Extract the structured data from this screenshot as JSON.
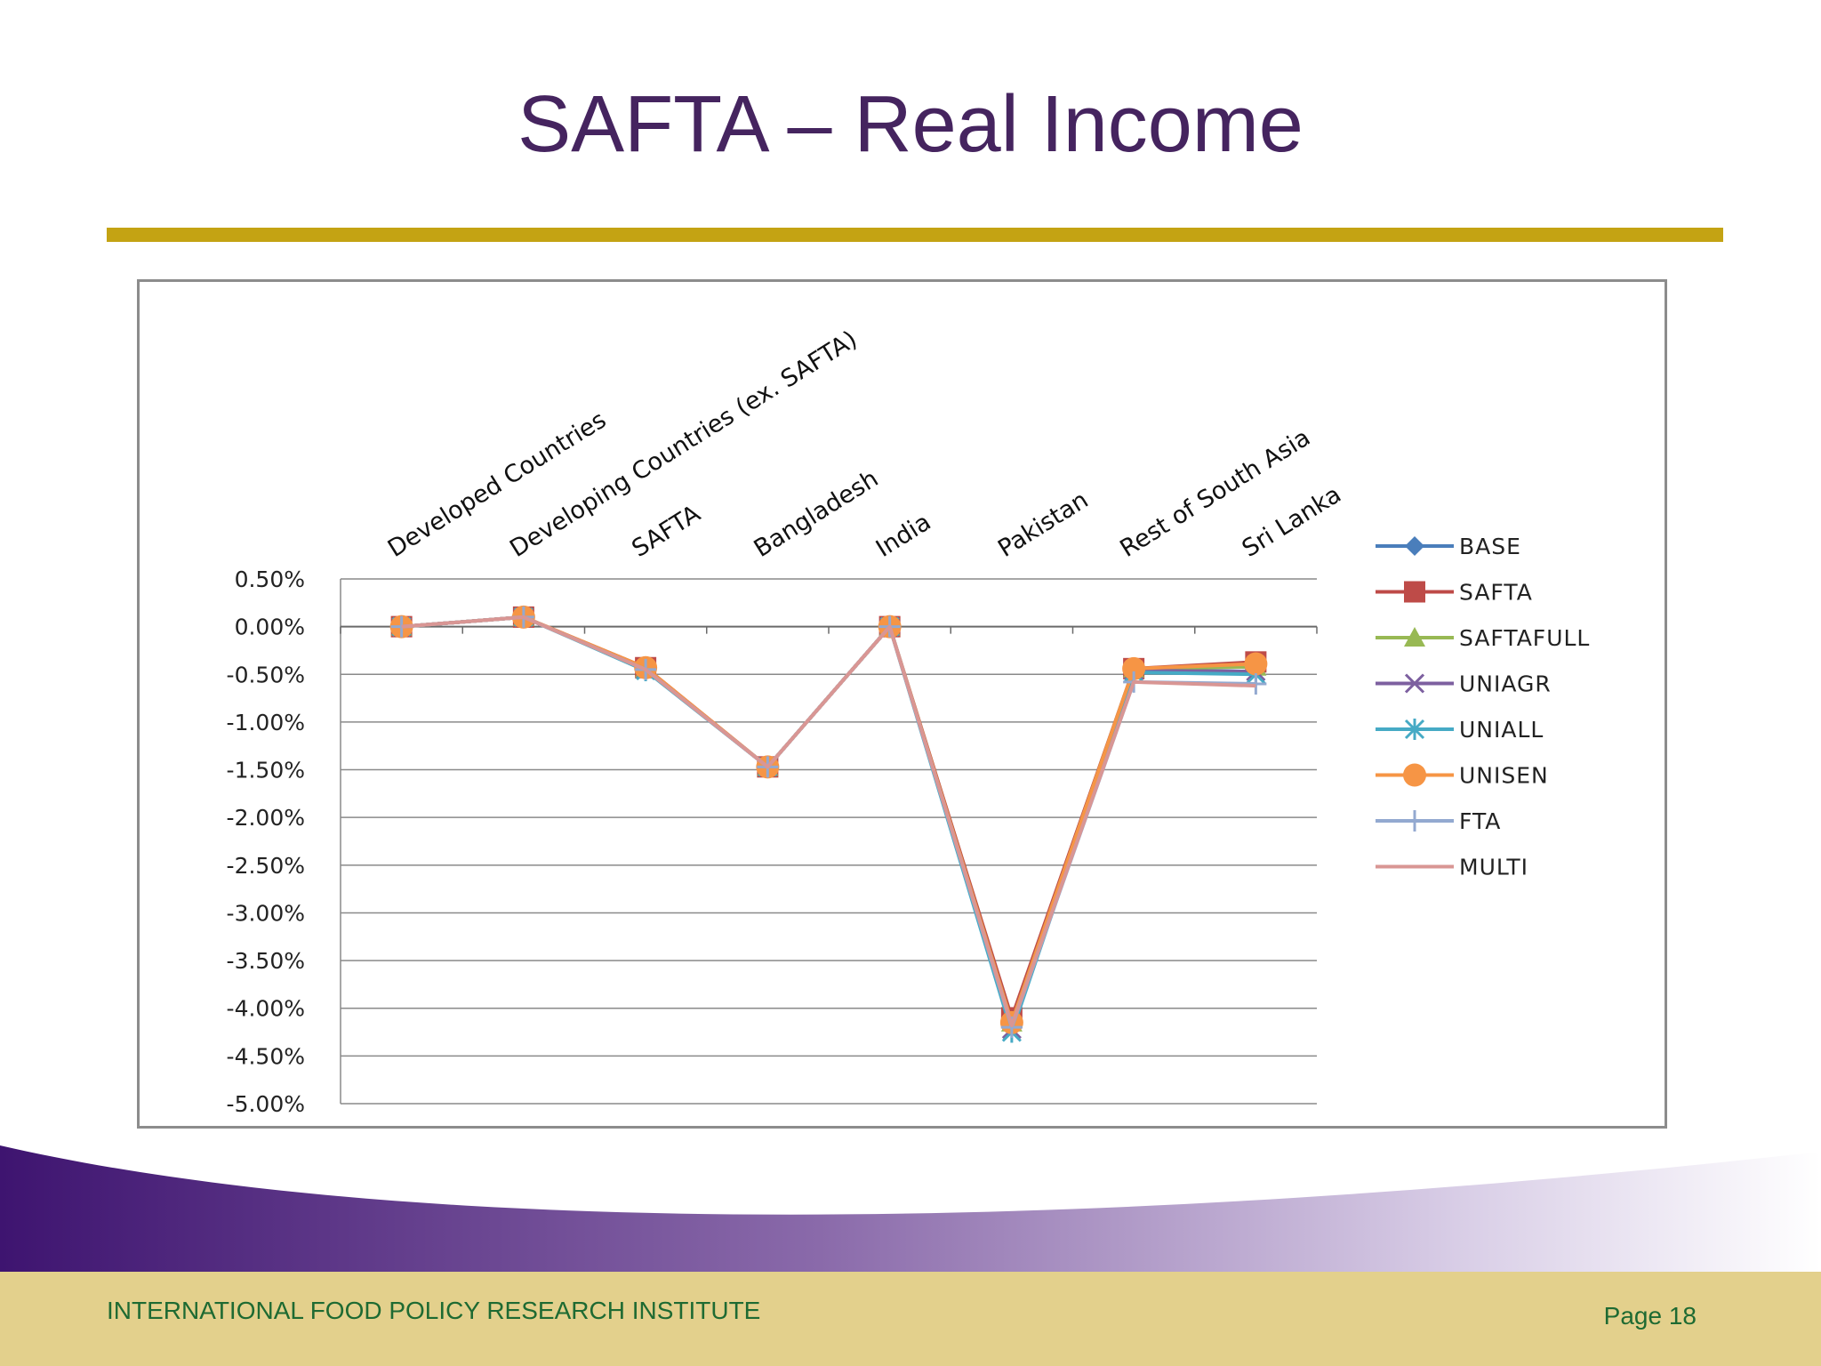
{
  "slide": {
    "title": "SAFTA – Real Income",
    "footer_org": "INTERNATIONAL FOOD POLICY RESEARCH INSTITUTE",
    "page_label": "Page 18"
  },
  "colors": {
    "title": "#45245f",
    "rule": "#c4a313",
    "footer_band": "#e3d08c",
    "footer_text": "#1e6a32"
  },
  "chart_data": {
    "type": "line",
    "title": "",
    "xlabel": "",
    "ylabel": "",
    "categories": [
      "Developed Countries",
      "Developing Countries (ex. SAFTA)",
      "SAFTA",
      "Bangladesh",
      "India",
      "Pakistan",
      "Rest of South Asia",
      "Sri Lanka"
    ],
    "ylim": [
      -5.0,
      0.5
    ],
    "yticks": [
      "0.50%",
      "0.00%",
      "-0.50%",
      "-1.00%",
      "-1.50%",
      "-2.00%",
      "-2.50%",
      "-3.00%",
      "-3.50%",
      "-4.00%",
      "-4.50%",
      "-5.00%"
    ],
    "grid": true,
    "legend_position": "right",
    "series": [
      {
        "name": "BASE",
        "color": "#4a7ebb",
        "marker": "diamond",
        "values": [
          0.0,
          0.1,
          -0.45,
          -1.47,
          0.0,
          -4.15,
          -0.45,
          -0.42
        ]
      },
      {
        "name": "SAFTA",
        "color": "#be4b48",
        "marker": "square",
        "values": [
          0.0,
          0.1,
          -0.43,
          -1.47,
          0.0,
          -4.1,
          -0.44,
          -0.37
        ]
      },
      {
        "name": "SAFTAFULL",
        "color": "#98b954",
        "marker": "triangle",
        "values": [
          0.0,
          0.1,
          -0.44,
          -1.47,
          0.0,
          -4.15,
          -0.44,
          -0.42
        ]
      },
      {
        "name": "UNIAGR",
        "color": "#7d60a0",
        "marker": "x",
        "values": [
          0.0,
          0.1,
          -0.45,
          -1.47,
          0.0,
          -4.22,
          -0.46,
          -0.47
        ]
      },
      {
        "name": "UNIALL",
        "color": "#46aac5",
        "marker": "star",
        "values": [
          0.0,
          0.1,
          -0.46,
          -1.47,
          0.0,
          -4.25,
          -0.48,
          -0.5
        ]
      },
      {
        "name": "UNISEN",
        "color": "#f69545",
        "marker": "circle",
        "values": [
          0.0,
          0.1,
          -0.43,
          -1.47,
          0.0,
          -4.15,
          -0.44,
          -0.39
        ]
      },
      {
        "name": "FTA",
        "color": "#93a9d0",
        "marker": "plus",
        "values": [
          0.0,
          0.1,
          -0.45,
          -1.47,
          0.0,
          -4.2,
          -0.58,
          -0.6
        ]
      },
      {
        "name": "MULTI",
        "color": "#d99694",
        "marker": "none",
        "values": [
          0.0,
          0.1,
          -0.45,
          -1.47,
          0.0,
          -4.18,
          -0.58,
          -0.62
        ]
      }
    ]
  }
}
